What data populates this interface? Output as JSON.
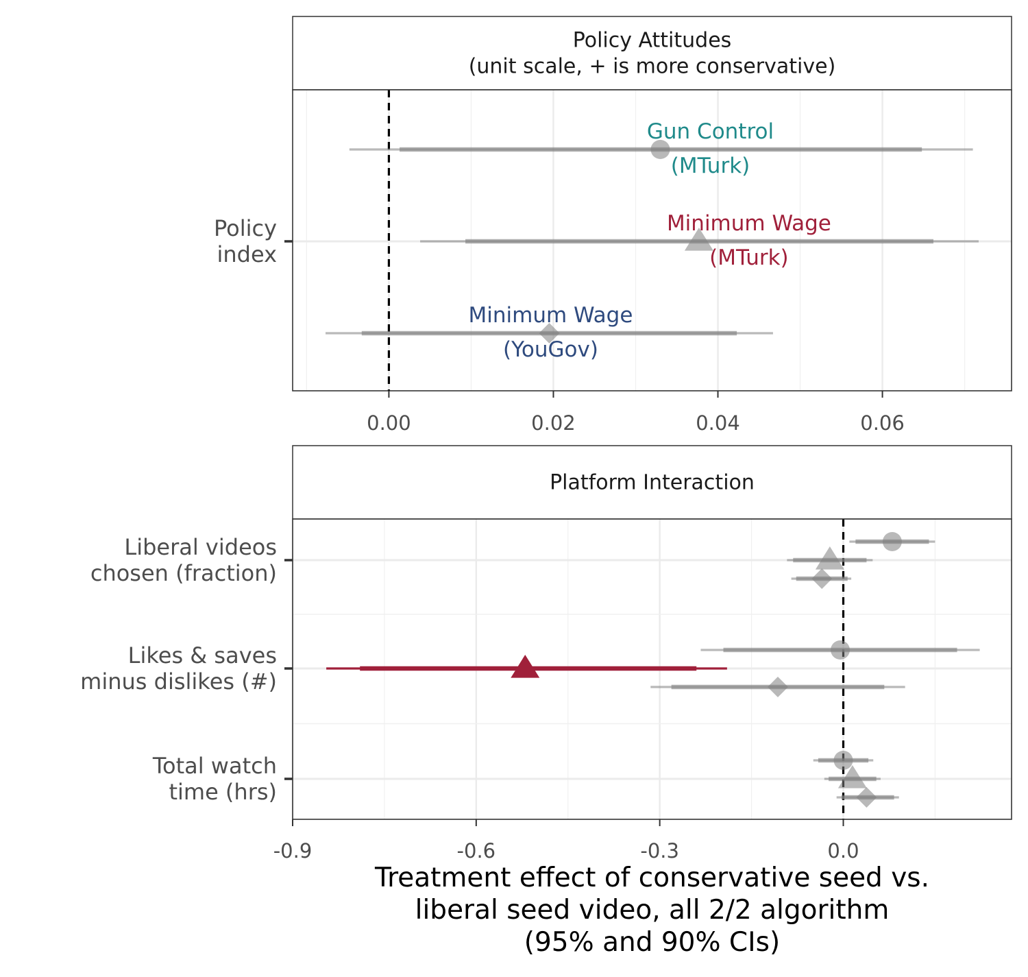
{
  "chart_data": [
    {
      "type": "forest",
      "panel_title": [
        "Policy Attitudes",
        "(unit scale, + is more conservative)"
      ],
      "categories": [
        "Policy\nindex"
      ],
      "xlim": [
        -0.0117,
        0.0757
      ],
      "x_ticks": [
        0.0,
        0.02,
        0.04,
        0.06
      ],
      "x_tick_labels": [
        "0.00",
        "0.02",
        "0.04",
        "0.06"
      ],
      "reference_line": 0,
      "grid": true,
      "series": [
        {
          "name_lines": [
            "Gun Control",
            "(MTurk)"
          ],
          "color": "#1f8a8a",
          "shape": "circle",
          "category": "Policy\nindex",
          "offset": 1,
          "estimate": 0.033,
          "ci90": [
            0.0013,
            0.0648
          ],
          "ci95": [
            -0.0048,
            0.071
          ],
          "significant": false
        },
        {
          "name_lines": [
            "Minimum Wage",
            "(MTurk)"
          ],
          "color": "#a0203a",
          "shape": "triangle",
          "category": "Policy\nindex",
          "offset": 0,
          "estimate": 0.0377,
          "ci90": [
            0.0093,
            0.0662
          ],
          "ci95": [
            0.0038,
            0.0717
          ],
          "significant": false
        },
        {
          "name_lines": [
            "Minimum Wage",
            "(YouGov)"
          ],
          "color": "#2e4a7e",
          "shape": "diamond",
          "category": "Policy\nindex",
          "offset": -1,
          "estimate": 0.0195,
          "ci90": [
            -0.0033,
            0.0423
          ],
          "ci95": [
            -0.0077,
            0.0467
          ],
          "significant": false
        }
      ]
    },
    {
      "type": "forest",
      "panel_title": [
        "Platform Interaction"
      ],
      "categories": [
        "Liberal videos\nchosen (fraction)",
        "Likes & saves\nminus dislikes (#)",
        "Total watch\ntime (hrs)"
      ],
      "xlim": [
        -0.9,
        0.275
      ],
      "x_ticks": [
        -0.9,
        -0.6,
        -0.3,
        0.0
      ],
      "x_tick_labels": [
        "-0.9",
        "-0.6",
        "-0.3",
        "0.0"
      ],
      "x_label": [
        "Treatment effect of conservative seed vs.",
        "liberal seed video, all 2/2 algorithm",
        "(95% and 90% CIs)"
      ],
      "reference_line": 0,
      "grid": true,
      "series": [
        {
          "category": "Liberal videos\nchosen (fraction)",
          "shape": "circle",
          "offset": 1,
          "estimate": 0.08,
          "ci90": [
            0.02,
            0.14
          ],
          "ci95": [
            0.01,
            0.15
          ],
          "significant": false
        },
        {
          "category": "Liberal videos\nchosen (fraction)",
          "shape": "triangle",
          "offset": 0,
          "estimate": -0.022,
          "ci90": [
            -0.082,
            0.038
          ],
          "ci95": [
            -0.092,
            0.048
          ],
          "significant": false
        },
        {
          "category": "Liberal videos\nchosen (fraction)",
          "shape": "diamond",
          "offset": -1,
          "estimate": -0.035,
          "ci90": [
            -0.077,
            0.007
          ],
          "ci95": [
            -0.085,
            0.013
          ],
          "significant": false
        },
        {
          "category": "Likes & saves\nminus dislikes (#)",
          "shape": "circle",
          "offset": 1,
          "estimate": -0.005,
          "ci90": [
            -0.196,
            0.186
          ],
          "ci95": [
            -0.233,
            0.223
          ],
          "significant": false
        },
        {
          "category": "Likes & saves\nminus dislikes (#)",
          "shape": "triangle",
          "offset": 0,
          "estimate": -0.52,
          "ci90": [
            -0.79,
            -0.24
          ],
          "ci95": [
            -0.845,
            -0.19
          ],
          "significant": true,
          "color": "#a0203a"
        },
        {
          "category": "Likes & saves\nminus dislikes (#)",
          "shape": "diamond",
          "offset": -1,
          "estimate": -0.107,
          "ci90": [
            -0.281,
            0.067
          ],
          "ci95": [
            -0.315,
            0.101
          ],
          "significant": false
        },
        {
          "category": "Total watch\ntime (hrs)",
          "shape": "circle",
          "offset": 1,
          "estimate": 0.0,
          "ci90": [
            -0.041,
            0.041
          ],
          "ci95": [
            -0.049,
            0.049
          ],
          "significant": false
        },
        {
          "category": "Total watch\ntime (hrs)",
          "shape": "triangle",
          "offset": 0,
          "estimate": 0.015,
          "ci90": [
            -0.024,
            0.054
          ],
          "ci95": [
            -0.031,
            0.061
          ],
          "significant": false
        },
        {
          "category": "Total watch\ntime (hrs)",
          "shape": "diamond",
          "offset": -1,
          "estimate": 0.038,
          "ci90": [
            -0.003,
            0.083
          ],
          "ci95": [
            -0.011,
            0.091
          ],
          "significant": false
        }
      ]
    }
  ],
  "colors": {
    "nonsignificant": "#7f7f7f",
    "reference_line": "#000000",
    "strip_border": "#333333"
  }
}
